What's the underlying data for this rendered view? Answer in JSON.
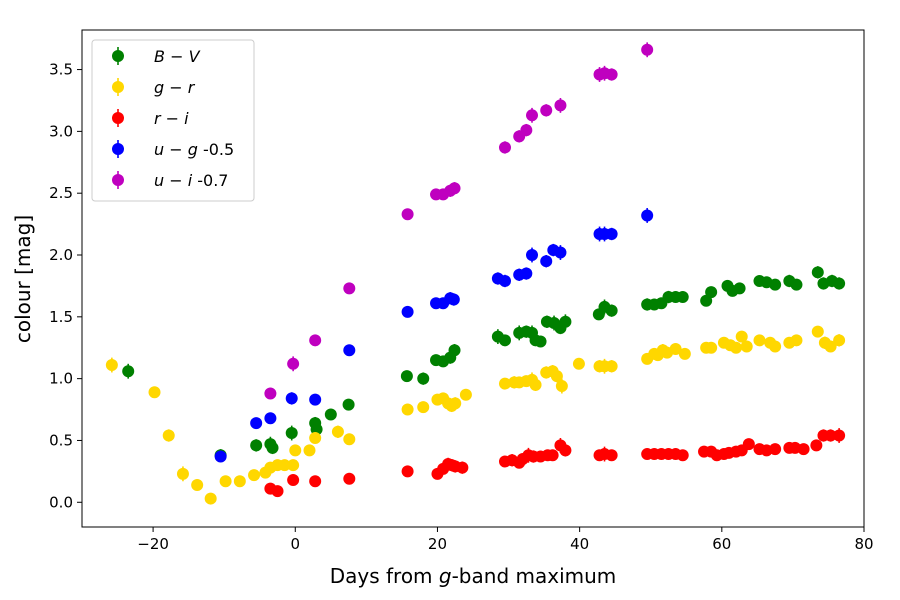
{
  "chart_data": {
    "type": "scatter",
    "title": "",
    "xlabel_parts": [
      "Days from ",
      "g",
      "-band maximum"
    ],
    "ylabel": "colour [mag]",
    "xlim": [
      -30,
      80
    ],
    "ylim": [
      -0.2,
      3.82
    ],
    "x_ticks": [
      -20,
      0,
      20,
      40,
      60,
      80
    ],
    "x_tick_labels": [
      "−20",
      "0",
      "20",
      "40",
      "60",
      "80"
    ],
    "y_ticks": [
      0.0,
      0.5,
      1.0,
      1.5,
      2.0,
      2.5,
      3.0,
      3.5
    ],
    "y_tick_labels": [
      "0.0",
      "0.5",
      "1.0",
      "1.5",
      "2.0",
      "2.5",
      "3.0",
      "3.5"
    ],
    "grid": false,
    "legend_position": "top-left",
    "series": [
      {
        "name": "B-V",
        "legend_parts": [
          [
            "B",
            true
          ],
          [
            " − ",
            false
          ],
          [
            "V",
            true
          ]
        ],
        "color": "#008000",
        "points": [
          [
            -23.5,
            1.06,
            0.06
          ],
          [
            -10.5,
            0.38,
            0.05
          ],
          [
            -5.5,
            0.46,
            0.05
          ],
          [
            -3.5,
            0.47,
            0.06
          ],
          [
            -3.2,
            0.44,
            0.05
          ],
          [
            -0.5,
            0.56,
            0.06
          ],
          [
            2.8,
            0.64,
            0.05
          ],
          [
            3.0,
            0.59,
            0.05
          ],
          [
            5.0,
            0.71,
            0.04
          ],
          [
            7.5,
            0.79,
            0.04
          ],
          [
            15.7,
            1.02,
            0.04
          ],
          [
            18.0,
            1.0,
            0.05
          ],
          [
            19.8,
            1.15,
            0.04
          ],
          [
            20.8,
            1.14,
            0.04
          ],
          [
            21.8,
            1.17,
            0.05
          ],
          [
            22.4,
            1.23,
            0.05
          ],
          [
            28.5,
            1.34,
            0.06
          ],
          [
            29.5,
            1.31,
            0.04
          ],
          [
            31.5,
            1.37,
            0.06
          ],
          [
            32.5,
            1.38,
            0.05
          ],
          [
            33.3,
            1.37,
            0.06
          ],
          [
            33.8,
            1.31,
            0.04
          ],
          [
            34.5,
            1.3,
            0.04
          ],
          [
            35.4,
            1.46,
            0.05
          ],
          [
            36.4,
            1.45,
            0.06
          ],
          [
            37.3,
            1.41,
            0.05
          ],
          [
            38.0,
            1.46,
            0.06
          ],
          [
            42.7,
            1.52,
            0.04
          ],
          [
            43.5,
            1.58,
            0.06
          ],
          [
            44.5,
            1.55,
            0.05
          ],
          [
            49.5,
            1.6,
            0.05
          ],
          [
            50.5,
            1.6,
            0.04
          ],
          [
            51.5,
            1.61,
            0.04
          ],
          [
            52.5,
            1.66,
            0.05
          ],
          [
            53.5,
            1.66,
            0.04
          ],
          [
            54.5,
            1.66,
            0.04
          ],
          [
            57.8,
            1.63,
            0.04
          ],
          [
            58.5,
            1.7,
            0.04
          ],
          [
            60.8,
            1.75,
            0.04
          ],
          [
            61.5,
            1.71,
            0.04
          ],
          [
            62.5,
            1.73,
            0.04
          ],
          [
            65.3,
            1.79,
            0.04
          ],
          [
            66.3,
            1.78,
            0.04
          ],
          [
            67.5,
            1.76,
            0.04
          ],
          [
            69.5,
            1.79,
            0.05
          ],
          [
            70.5,
            1.76,
            0.04
          ],
          [
            73.5,
            1.86,
            0.05
          ],
          [
            74.3,
            1.77,
            0.05
          ],
          [
            75.5,
            1.79,
            0.05
          ],
          [
            76.5,
            1.77,
            0.05
          ]
        ]
      },
      {
        "name": "g-r",
        "legend_parts": [
          [
            "g",
            true
          ],
          [
            " − ",
            false
          ],
          [
            "r",
            true
          ]
        ],
        "color": "#ffd700",
        "points": [
          [
            -25.8,
            1.11,
            0.06
          ],
          [
            -19.8,
            0.89,
            0.03
          ],
          [
            -17.8,
            0.54,
            0.05
          ],
          [
            -15.8,
            0.23,
            0.06
          ],
          [
            -13.8,
            0.14,
            0.03
          ],
          [
            -11.9,
            0.03,
            0.04
          ],
          [
            -9.8,
            0.17,
            0.03
          ],
          [
            -7.8,
            0.17,
            0.03
          ],
          [
            -5.8,
            0.22,
            0.04
          ],
          [
            -4.2,
            0.24,
            0.04
          ],
          [
            -3.5,
            0.28,
            0.04
          ],
          [
            -2.5,
            0.3,
            0.04
          ],
          [
            -1.5,
            0.3,
            0.04
          ],
          [
            -0.3,
            0.3,
            0.04
          ],
          [
            0.0,
            0.42,
            0.04
          ],
          [
            2.0,
            0.42,
            0.04
          ],
          [
            2.8,
            0.52,
            0.04
          ],
          [
            6.0,
            0.57,
            0.05
          ],
          [
            7.6,
            0.51,
            0.04
          ],
          [
            15.8,
            0.75,
            0.04
          ],
          [
            18.0,
            0.77,
            0.04
          ],
          [
            20.0,
            0.83,
            0.04
          ],
          [
            20.8,
            0.84,
            0.04
          ],
          [
            21.5,
            0.8,
            0.05
          ],
          [
            22.0,
            0.78,
            0.05
          ],
          [
            22.5,
            0.8,
            0.05
          ],
          [
            24.0,
            0.87,
            0.04
          ],
          [
            29.5,
            0.96,
            0.04
          ],
          [
            30.8,
            0.97,
            0.05
          ],
          [
            31.5,
            0.97,
            0.04
          ],
          [
            32.5,
            0.98,
            0.04
          ],
          [
            33.3,
            0.99,
            0.06
          ],
          [
            33.8,
            0.95,
            0.05
          ],
          [
            35.3,
            1.05,
            0.05
          ],
          [
            36.2,
            1.06,
            0.05
          ],
          [
            36.8,
            1.02,
            0.05
          ],
          [
            37.5,
            0.94,
            0.06
          ],
          [
            39.9,
            1.12,
            0.04
          ],
          [
            42.8,
            1.1,
            0.05
          ],
          [
            43.5,
            1.1,
            0.06
          ],
          [
            44.5,
            1.1,
            0.05
          ],
          [
            49.5,
            1.16,
            0.04
          ],
          [
            50.5,
            1.2,
            0.04
          ],
          [
            51.0,
            1.19,
            0.04
          ],
          [
            51.7,
            1.23,
            0.05
          ],
          [
            52.3,
            1.21,
            0.04
          ],
          [
            53.5,
            1.24,
            0.04
          ],
          [
            54.8,
            1.2,
            0.04
          ],
          [
            57.8,
            1.25,
            0.04
          ],
          [
            58.5,
            1.25,
            0.04
          ],
          [
            60.3,
            1.29,
            0.04
          ],
          [
            61.2,
            1.27,
            0.04
          ],
          [
            62.0,
            1.25,
            0.04
          ],
          [
            62.8,
            1.34,
            0.04
          ],
          [
            63.5,
            1.26,
            0.04
          ],
          [
            65.3,
            1.31,
            0.04
          ],
          [
            66.8,
            1.29,
            0.04
          ],
          [
            67.5,
            1.26,
            0.04
          ],
          [
            69.5,
            1.29,
            0.04
          ],
          [
            70.5,
            1.31,
            0.04
          ],
          [
            73.5,
            1.38,
            0.04
          ],
          [
            74.5,
            1.29,
            0.05
          ],
          [
            75.3,
            1.26,
            0.04
          ],
          [
            76.5,
            1.31,
            0.05
          ]
        ]
      },
      {
        "name": "r-i",
        "legend_parts": [
          [
            "r",
            true
          ],
          [
            " − ",
            false
          ],
          [
            "i",
            true
          ]
        ],
        "color": "#ff0000",
        "points": [
          [
            -3.5,
            0.11,
            0.04
          ],
          [
            -2.5,
            0.09,
            0.04
          ],
          [
            -0.3,
            0.18,
            0.04
          ],
          [
            2.8,
            0.17,
            0.03
          ],
          [
            7.6,
            0.19,
            0.03
          ],
          [
            15.8,
            0.25,
            0.03
          ],
          [
            20.0,
            0.23,
            0.04
          ],
          [
            20.8,
            0.27,
            0.04
          ],
          [
            21.5,
            0.31,
            0.05
          ],
          [
            22.0,
            0.3,
            0.05
          ],
          [
            22.5,
            0.29,
            0.05
          ],
          [
            23.5,
            0.28,
            0.05
          ],
          [
            29.5,
            0.33,
            0.04
          ],
          [
            30.5,
            0.34,
            0.05
          ],
          [
            31.5,
            0.32,
            0.04
          ],
          [
            32.0,
            0.35,
            0.04
          ],
          [
            32.8,
            0.38,
            0.06
          ],
          [
            33.5,
            0.37,
            0.05
          ],
          [
            34.5,
            0.37,
            0.04
          ],
          [
            35.5,
            0.38,
            0.04
          ],
          [
            36.2,
            0.38,
            0.04
          ],
          [
            37.3,
            0.46,
            0.06
          ],
          [
            38.0,
            0.42,
            0.05
          ],
          [
            42.8,
            0.38,
            0.04
          ],
          [
            43.5,
            0.39,
            0.06
          ],
          [
            44.5,
            0.38,
            0.04
          ],
          [
            49.5,
            0.39,
            0.04
          ],
          [
            50.5,
            0.39,
            0.04
          ],
          [
            51.5,
            0.39,
            0.04
          ],
          [
            52.5,
            0.39,
            0.04
          ],
          [
            53.5,
            0.39,
            0.04
          ],
          [
            54.5,
            0.38,
            0.04
          ],
          [
            57.5,
            0.41,
            0.04
          ],
          [
            58.5,
            0.41,
            0.04
          ],
          [
            59.3,
            0.38,
            0.04
          ],
          [
            60.3,
            0.39,
            0.04
          ],
          [
            61.0,
            0.4,
            0.04
          ],
          [
            62.0,
            0.41,
            0.04
          ],
          [
            62.8,
            0.42,
            0.04
          ],
          [
            63.8,
            0.47,
            0.04
          ],
          [
            65.3,
            0.43,
            0.04
          ],
          [
            66.3,
            0.42,
            0.04
          ],
          [
            67.5,
            0.43,
            0.04
          ],
          [
            69.5,
            0.44,
            0.04
          ],
          [
            70.3,
            0.44,
            0.04
          ],
          [
            71.5,
            0.43,
            0.04
          ],
          [
            73.3,
            0.46,
            0.04
          ],
          [
            74.3,
            0.54,
            0.05
          ],
          [
            75.3,
            0.54,
            0.05
          ],
          [
            76.5,
            0.54,
            0.06
          ]
        ]
      },
      {
        "name": "u-g -0.5",
        "legend_parts": [
          [
            "u",
            true
          ],
          [
            " − ",
            false
          ],
          [
            "g",
            true
          ],
          [
            " -0.5",
            false
          ]
        ],
        "color": "#0000ff",
        "points": [
          [
            -10.5,
            0.37,
            0.04
          ],
          [
            -5.5,
            0.64,
            0.04
          ],
          [
            -3.5,
            0.68,
            0.04
          ],
          [
            -0.5,
            0.84,
            0.05
          ],
          [
            2.8,
            0.83,
            0.04
          ],
          [
            7.6,
            1.23,
            0.04
          ],
          [
            15.8,
            1.54,
            0.04
          ],
          [
            19.8,
            1.61,
            0.04
          ],
          [
            20.8,
            1.61,
            0.04
          ],
          [
            21.8,
            1.65,
            0.05
          ],
          [
            22.3,
            1.64,
            0.05
          ],
          [
            28.5,
            1.81,
            0.05
          ],
          [
            29.5,
            1.79,
            0.05
          ],
          [
            31.5,
            1.84,
            0.05
          ],
          [
            32.5,
            1.85,
            0.05
          ],
          [
            33.3,
            2.0,
            0.06
          ],
          [
            35.3,
            1.95,
            0.05
          ],
          [
            36.3,
            2.04,
            0.05
          ],
          [
            37.3,
            2.02,
            0.06
          ],
          [
            42.8,
            2.17,
            0.06
          ],
          [
            43.5,
            2.17,
            0.06
          ],
          [
            44.5,
            2.17,
            0.05
          ],
          [
            49.5,
            2.32,
            0.06
          ]
        ]
      },
      {
        "name": "u-i -0.7",
        "legend_parts": [
          [
            "u",
            true
          ],
          [
            " − ",
            false
          ],
          [
            "i",
            true
          ],
          [
            " -0.7",
            false
          ]
        ],
        "color": "#bf00bf",
        "points": [
          [
            -3.5,
            0.88,
            0.04
          ],
          [
            -0.3,
            1.12,
            0.06
          ],
          [
            2.8,
            1.31,
            0.04
          ],
          [
            7.6,
            1.73,
            0.04
          ],
          [
            15.8,
            2.33,
            0.04
          ],
          [
            19.8,
            2.49,
            0.04
          ],
          [
            20.8,
            2.49,
            0.04
          ],
          [
            21.8,
            2.52,
            0.05
          ],
          [
            22.4,
            2.54,
            0.05
          ],
          [
            29.5,
            2.87,
            0.05
          ],
          [
            31.5,
            2.96,
            0.05
          ],
          [
            32.5,
            3.01,
            0.05
          ],
          [
            33.3,
            3.13,
            0.06
          ],
          [
            35.3,
            3.17,
            0.05
          ],
          [
            37.3,
            3.21,
            0.06
          ],
          [
            42.8,
            3.46,
            0.06
          ],
          [
            43.5,
            3.47,
            0.06
          ],
          [
            44.5,
            3.46,
            0.05
          ],
          [
            49.5,
            3.66,
            0.06
          ]
        ]
      }
    ]
  }
}
